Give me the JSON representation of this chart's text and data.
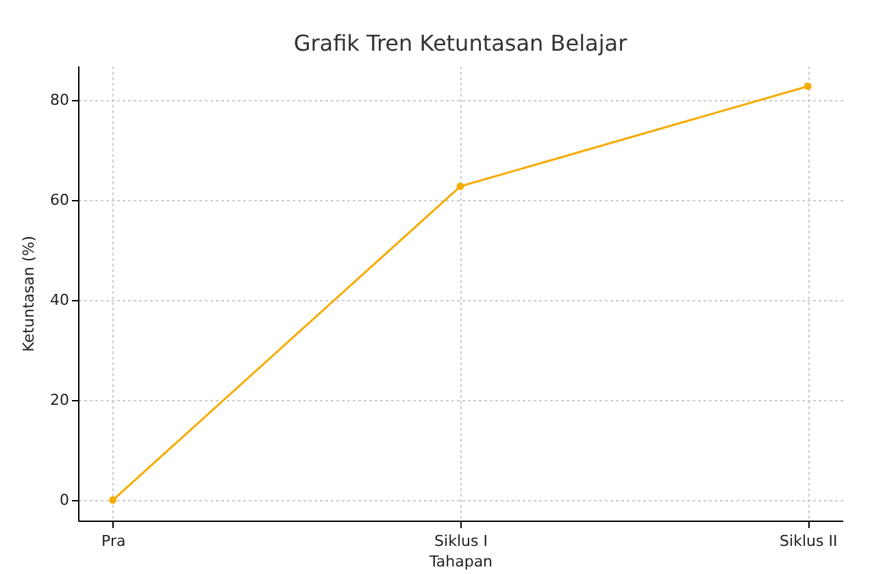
{
  "chart_data": {
    "type": "line",
    "title": "Grafik Tren Ketuntasan Belajar",
    "xlabel": "Tahapan",
    "ylabel": "Ketuntasan (%)",
    "categories": [
      "Pra",
      "Siklus I",
      "Siklus II"
    ],
    "series": [
      {
        "color": "#f5ac00",
        "values": [
          0,
          62.7,
          82.7
        ]
      }
    ],
    "ylim": [
      -4.1,
      86.8
    ],
    "yticks": [
      0,
      20,
      40,
      60,
      80
    ],
    "grid": true,
    "marker": "circle",
    "line_style": "solid"
  }
}
